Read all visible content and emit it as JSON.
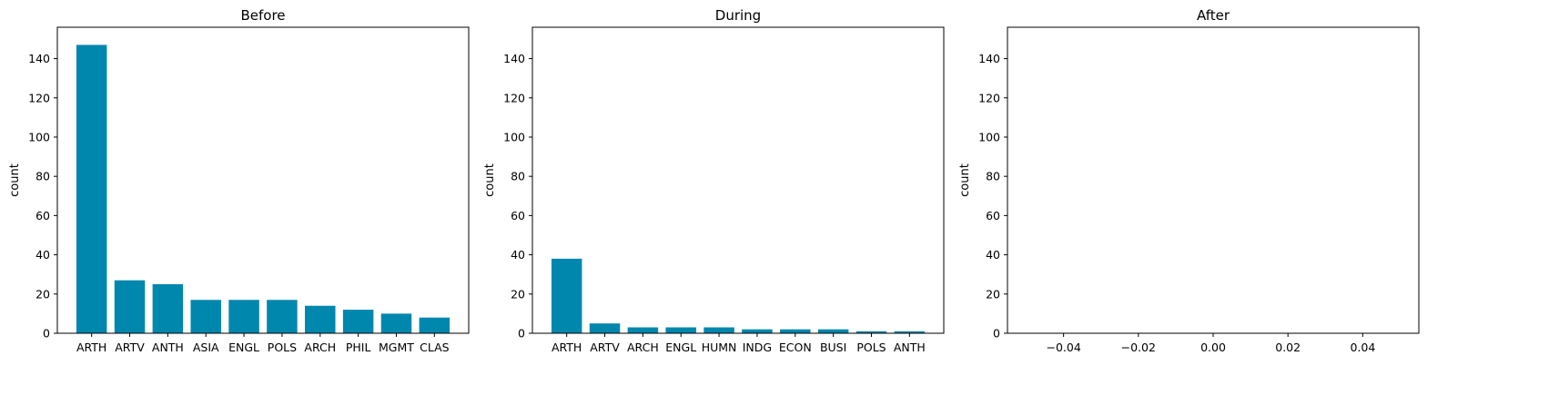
{
  "chart_data": [
    {
      "type": "bar",
      "title": "Before",
      "xlabel": "",
      "ylabel": "count",
      "categories": [
        "ARTH",
        "ARTV",
        "ANTH",
        "ASIA",
        "ENGL",
        "POLS",
        "ARCH",
        "PHIL",
        "MGMT",
        "CLAS"
      ],
      "values": [
        147,
        27,
        25,
        17,
        17,
        17,
        14,
        12,
        10,
        8
      ],
      "ylim": [
        0,
        156
      ],
      "yticks": [
        0,
        20,
        40,
        60,
        80,
        100,
        120,
        140
      ],
      "color": "#0087ae",
      "grid": false
    },
    {
      "type": "bar",
      "title": "During",
      "xlabel": "",
      "ylabel": "count",
      "categories": [
        "ARTH",
        "ARTV",
        "ARCH",
        "ENGL",
        "HUMN",
        "INDG",
        "ECON",
        "BUSI",
        "POLS",
        "ANTH"
      ],
      "values": [
        38,
        5,
        3,
        3,
        3,
        2,
        2,
        2,
        1,
        1
      ],
      "ylim": [
        0,
        156
      ],
      "yticks": [
        0,
        20,
        40,
        60,
        80,
        100,
        120,
        140
      ],
      "color": "#0087ae",
      "grid": false
    },
    {
      "type": "bar",
      "title": "After",
      "xlabel": "",
      "ylabel": "count",
      "categories": [],
      "values": [],
      "xlim": [
        -0.055,
        0.055
      ],
      "xticks": [
        "−0.04",
        "−0.02",
        "0.00",
        "0.02",
        "0.04"
      ],
      "xtick_values": [
        -0.04,
        -0.02,
        0.0,
        0.02,
        0.04
      ],
      "ylim": [
        0,
        156
      ],
      "yticks": [
        0,
        20,
        40,
        60,
        80,
        100,
        120,
        140
      ],
      "color": "#0087ae",
      "grid": false
    }
  ]
}
